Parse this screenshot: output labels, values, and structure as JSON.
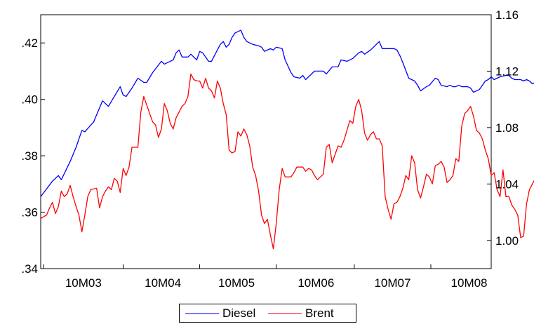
{
  "chart_data": {
    "type": "line",
    "title": "",
    "xlabel": "",
    "ylabel": "",
    "grid": false,
    "legend_position": "bottom-center",
    "x_tick_labels": [
      "10M03",
      "10M04",
      "10M05",
      "10M06",
      "10M07",
      "10M08"
    ],
    "x_tick_weeks": [
      14.5,
      41.5,
      66.5,
      93.5,
      119.5,
      145.5
    ],
    "week_count": 153,
    "ylim_left": [
      0.34,
      0.43
    ],
    "ylim_right": [
      0.98,
      1.16
    ],
    "left_tick_labels": [
      {
        "value": 0.34,
        "label": ".34"
      },
      {
        "value": 0.36,
        "label": ".36"
      },
      {
        "value": 0.38,
        "label": ".38"
      },
      {
        "value": 0.4,
        "label": ".40"
      },
      {
        "value": 0.42,
        "label": ".42"
      }
    ],
    "right_tick_labels": [
      {
        "value": 1.0,
        "label": "1.00"
      },
      {
        "value": 1.04,
        "label": "1.04"
      },
      {
        "value": 1.08,
        "label": "1.08"
      },
      {
        "value": 1.12,
        "label": "1.12"
      },
      {
        "value": 1.16,
        "label": "1.16"
      }
    ],
    "series": [
      {
        "name": "Diesel",
        "axis": "left",
        "color": "#0000ff",
        "points": [
          [
            0,
            0.3655
          ],
          [
            4,
            0.371
          ],
          [
            6,
            0.373
          ],
          [
            7,
            0.3715
          ],
          [
            10,
            0.378
          ],
          [
            12,
            0.383
          ],
          [
            14,
            0.389
          ],
          [
            15,
            0.3885
          ],
          [
            18,
            0.392
          ],
          [
            21,
            0.3995
          ],
          [
            22,
            0.3985
          ],
          [
            23,
            0.3975
          ],
          [
            25,
            0.401
          ],
          [
            27,
            0.4045
          ],
          [
            28,
            0.4015
          ],
          [
            29,
            0.401
          ],
          [
            31,
            0.404
          ],
          [
            33,
            0.4075
          ],
          [
            35,
            0.406
          ],
          [
            36,
            0.406
          ],
          [
            38,
            0.4095
          ],
          [
            41,
            0.4135
          ],
          [
            42,
            0.4125
          ],
          [
            45,
            0.414
          ],
          [
            46,
            0.4165
          ],
          [
            47,
            0.4175
          ],
          [
            48,
            0.415
          ],
          [
            50,
            0.415
          ],
          [
            51,
            0.416
          ],
          [
            53,
            0.414
          ],
          [
            54,
            0.417
          ],
          [
            55,
            0.4165
          ],
          [
            57,
            0.4135
          ],
          [
            58,
            0.4135
          ],
          [
            59,
            0.4155
          ],
          [
            61,
            0.4195
          ],
          [
            62,
            0.4205
          ],
          [
            63,
            0.4185
          ],
          [
            64,
            0.4195
          ],
          [
            65,
            0.422
          ],
          [
            66,
            0.4235
          ],
          [
            68,
            0.4245
          ],
          [
            69,
            0.422
          ],
          [
            70,
            0.4205
          ],
          [
            72,
            0.4195
          ],
          [
            74,
            0.419
          ],
          [
            75,
            0.4185
          ],
          [
            76,
            0.417
          ],
          [
            78,
            0.418
          ],
          [
            79,
            0.4175
          ],
          [
            80,
            0.4185
          ],
          [
            82,
            0.418
          ],
          [
            83,
            0.414
          ],
          [
            85,
            0.4095
          ],
          [
            86,
            0.408
          ],
          [
            88,
            0.4075
          ],
          [
            89,
            0.4085
          ],
          [
            90,
            0.407
          ],
          [
            93,
            0.41
          ],
          [
            95,
            0.41
          ],
          [
            96,
            0.41
          ],
          [
            97,
            0.409
          ],
          [
            99,
            0.4115
          ],
          [
            101,
            0.4115
          ],
          [
            102,
            0.414
          ],
          [
            104,
            0.4135
          ],
          [
            105,
            0.414
          ],
          [
            106,
            0.4145
          ],
          [
            108,
            0.4165
          ],
          [
            109,
            0.417
          ],
          [
            110,
            0.416
          ],
          [
            112,
            0.4175
          ],
          [
            113,
            0.4185
          ],
          [
            114,
            0.4195
          ],
          [
            115,
            0.4205
          ],
          [
            116,
            0.418
          ],
          [
            120,
            0.418
          ],
          [
            121,
            0.4175
          ],
          [
            122,
            0.4155
          ],
          [
            123,
            0.413
          ],
          [
            125,
            0.4075
          ],
          [
            127,
            0.4065
          ],
          [
            128,
            0.405
          ],
          [
            129,
            0.403
          ],
          [
            131,
            0.4045
          ],
          [
            132,
            0.405
          ],
          [
            134,
            0.4075
          ],
          [
            135,
            0.407
          ],
          [
            136,
            0.405
          ],
          [
            138,
            0.4045
          ],
          [
            139,
            0.405
          ],
          [
            140,
            0.4045
          ],
          [
            141,
            0.4045
          ],
          [
            142,
            0.405
          ],
          [
            143,
            0.4045
          ],
          [
            145,
            0.4045
          ],
          [
            146,
            0.404
          ],
          [
            147,
            0.4025
          ],
          [
            149,
            0.4035
          ],
          [
            150,
            0.405
          ],
          [
            151,
            0.4065
          ],
          [
            152,
            0.407
          ],
          [
            153,
            0.408
          ],
          [
            154,
            0.407
          ],
          [
            155,
            0.4075
          ],
          [
            156,
            0.408
          ],
          [
            158,
            0.4085
          ],
          [
            159,
            0.4085
          ],
          [
            160,
            0.4075
          ],
          [
            161,
            0.407
          ],
          [
            163,
            0.407
          ],
          [
            164,
            0.4065
          ],
          [
            165,
            0.407
          ],
          [
            166,
            0.4065
          ],
          [
            167,
            0.4055
          ],
          [
            168,
            0.406
          ],
          [
            170,
            0.4065
          ],
          [
            171,
            0.4065
          ],
          [
            172,
            0.4055
          ],
          [
            174,
            0.4065
          ],
          [
            175,
            0.4055
          ],
          [
            176,
            0.406
          ],
          [
            177,
            0.4075
          ]
        ]
      },
      {
        "name": "Brent",
        "axis": "right",
        "color": "#ff0000",
        "points": [
          [
            0,
            1.0155
          ],
          [
            2,
            1.018
          ],
          [
            3,
            1.023
          ],
          [
            4,
            1.027
          ],
          [
            5,
            1.019
          ],
          [
            6,
            1.024
          ],
          [
            7,
            1.035
          ],
          [
            8,
            1.031
          ],
          [
            9,
            1.033
          ],
          [
            10,
            1.039
          ],
          [
            11,
            1.031
          ],
          [
            12,
            1.024
          ],
          [
            13,
            1.018
          ],
          [
            14,
            1.006
          ],
          [
            15,
            1.018
          ],
          [
            16,
            1.031
          ],
          [
            17,
            1.036
          ],
          [
            19,
            1.037
          ],
          [
            20,
            1.023
          ],
          [
            21,
            1.031
          ],
          [
            22,
            1.035
          ],
          [
            23,
            1.038
          ],
          [
            24,
            1.036
          ],
          [
            25,
            1.044
          ],
          [
            26,
            1.042
          ],
          [
            27,
            1.034
          ],
          [
            28,
            1.051
          ],
          [
            29,
            1.046
          ],
          [
            30,
            1.052
          ],
          [
            31,
            1.066
          ],
          [
            33,
            1.066
          ],
          [
            34,
            1.091
          ],
          [
            35,
            1.102
          ],
          [
            36,
            1.096
          ],
          [
            37,
            1.09
          ],
          [
            38,
            1.084
          ],
          [
            39,
            1.082
          ],
          [
            40,
            1.073
          ],
          [
            41,
            1.079
          ],
          [
            42,
            1.097
          ],
          [
            43,
            1.092
          ],
          [
            44,
            1.083
          ],
          [
            45,
            1.079
          ],
          [
            46,
            1.087
          ],
          [
            47,
            1.091
          ],
          [
            48,
            1.095
          ],
          [
            49,
            1.097
          ],
          [
            50,
            1.102
          ],
          [
            51,
            1.118
          ],
          [
            52,
            1.114
          ],
          [
            53,
            1.113
          ],
          [
            54,
            1.113
          ],
          [
            55,
            1.108
          ],
          [
            56,
            1.115
          ],
          [
            57,
            1.108
          ],
          [
            58,
            1.106
          ],
          [
            59,
            1.101
          ],
          [
            60,
            1.113
          ],
          [
            61,
            1.108
          ],
          [
            62,
            1.097
          ],
          [
            63,
            1.089
          ],
          [
            64,
            1.064
          ],
          [
            65,
            1.062
          ],
          [
            66,
            1.063
          ],
          [
            67,
            1.077
          ],
          [
            68,
            1.074
          ],
          [
            69,
            1.079
          ],
          [
            70,
            1.075
          ],
          [
            71,
            1.067
          ],
          [
            72,
            1.052
          ],
          [
            73,
            1.046
          ],
          [
            74,
            1.035
          ],
          [
            75,
            1.018
          ],
          [
            76,
            1.012
          ],
          [
            77,
            1.015
          ],
          [
            78,
            1.004
          ],
          [
            79,
            0.994
          ],
          [
            80,
            1.012
          ],
          [
            81,
            1.036
          ],
          [
            82,
            1.051
          ],
          [
            83,
            1.045
          ],
          [
            85,
            1.045
          ],
          [
            86,
            1.048
          ],
          [
            87,
            1.052
          ],
          [
            89,
            1.052
          ],
          [
            90,
            1.049
          ],
          [
            91,
            1.051
          ],
          [
            92,
            1.05
          ],
          [
            93,
            1.046
          ],
          [
            94,
            1.043
          ],
          [
            95,
            1.045
          ],
          [
            96,
            1.047
          ],
          [
            97,
            1.066
          ],
          [
            98,
            1.068
          ],
          [
            99,
            1.055
          ],
          [
            100,
            1.061
          ],
          [
            101,
            1.067
          ],
          [
            102,
            1.066
          ],
          [
            103,
            1.071
          ],
          [
            104,
            1.078
          ],
          [
            105,
            1.085
          ],
          [
            106,
            1.083
          ],
          [
            107,
            1.095
          ],
          [
            108,
            1.1
          ],
          [
            109,
            1.092
          ],
          [
            110,
            1.076
          ],
          [
            111,
            1.071
          ],
          [
            112,
            1.075
          ],
          [
            113,
            1.077
          ],
          [
            114,
            1.072
          ],
          [
            115,
            1.072
          ],
          [
            116,
            1.067
          ],
          [
            117,
            1.031
          ],
          [
            118,
            1.022
          ],
          [
            119,
            1.015
          ],
          [
            120,
            1.026
          ],
          [
            121,
            1.027
          ],
          [
            122,
            1.031
          ],
          [
            123,
            1.037
          ],
          [
            124,
            1.046
          ],
          [
            125,
            1.043
          ],
          [
            126,
            1.06
          ],
          [
            127,
            1.055
          ],
          [
            128,
            1.036
          ],
          [
            129,
            1.03
          ],
          [
            130,
            1.038
          ],
          [
            131,
            1.047
          ],
          [
            132,
            1.045
          ],
          [
            133,
            1.04
          ],
          [
            134,
            1.053
          ],
          [
            135,
            1.054
          ],
          [
            136,
            1.056
          ],
          [
            137,
            1.052
          ],
          [
            138,
            1.041
          ],
          [
            139,
            1.043
          ],
          [
            140,
            1.046
          ],
          [
            141,
            1.058
          ],
          [
            142,
            1.056
          ],
          [
            143,
            1.081
          ],
          [
            144,
            1.09
          ],
          [
            145,
            1.092
          ],
          [
            146,
            1.095
          ],
          [
            147,
            1.088
          ],
          [
            148,
            1.078
          ],
          [
            149,
            1.076
          ],
          [
            150,
            1.072
          ],
          [
            151,
            1.064
          ],
          [
            152,
            1.058
          ],
          [
            153,
            1.046
          ],
          [
            154,
            1.048
          ],
          [
            155,
            1.036
          ],
          [
            156,
            1.031
          ],
          [
            157,
            1.05
          ],
          [
            158,
            1.031
          ],
          [
            159,
            1.031
          ],
          [
            160,
            1.025
          ],
          [
            161,
            1.022
          ],
          [
            162,
            1.018
          ],
          [
            163,
            1.002
          ],
          [
            164,
            1.003
          ],
          [
            165,
            1.026
          ],
          [
            166,
            1.036
          ],
          [
            167,
            1.04
          ],
          [
            168,
            1.044
          ],
          [
            169,
            1.049
          ],
          [
            170,
            1.05
          ],
          [
            171,
            1.047
          ]
        ]
      }
    ]
  }
}
